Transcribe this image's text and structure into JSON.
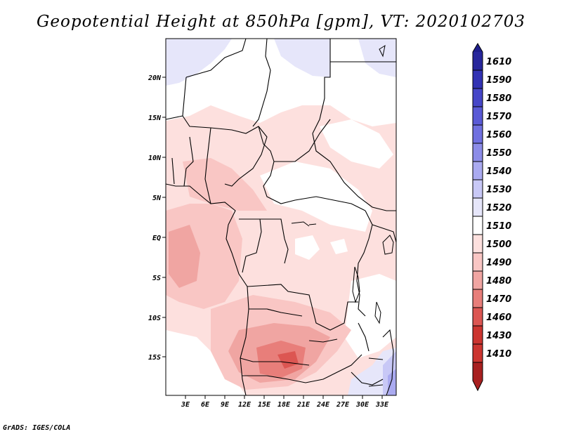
{
  "title": "Geopotential Height at 850hPa [gpm], VT: 2020102703",
  "credit": "GrADS: IGES/COLA",
  "map": {
    "lat_labels": [
      "20N",
      "15N",
      "10N",
      "5N",
      "EQ",
      "5S",
      "10S",
      "15S"
    ],
    "lon_labels": [
      "3E",
      "6E",
      "9E",
      "12E",
      "15E",
      "18E",
      "21E",
      "24E",
      "27E",
      "30E",
      "33E"
    ]
  },
  "colorbar": {
    "levels": [
      "1610",
      "1590",
      "1580",
      "1570",
      "1560",
      "1550",
      "1540",
      "1530",
      "1520",
      "1510",
      "1500",
      "1490",
      "1480",
      "1470",
      "1460",
      "1430",
      "1410"
    ],
    "colors": {
      "above_1610": "#1e1e8c",
      "1590_1610": "#28279c",
      "1580_1590": "#3232b4",
      "1570_1580": "#4646c8",
      "1560_1570": "#5a5ad6",
      "1550_1560": "#7070e0",
      "1540_1550": "#8c8ce8",
      "1530_1540": "#aaaaf0",
      "1520_1530": "#c8c8f6",
      "1510_1520": "#e6e6fa",
      "1500_1510": "#ffffff",
      "1490_1500": "#fde0de",
      "1480_1490": "#f9c6c4",
      "1470_1480": "#f0a5a2",
      "1460_1470": "#e87e7a",
      "1430_1460": "#dc5652",
      "1410_1430": "#cc3530",
      "below_1410": "#a82020"
    }
  }
}
